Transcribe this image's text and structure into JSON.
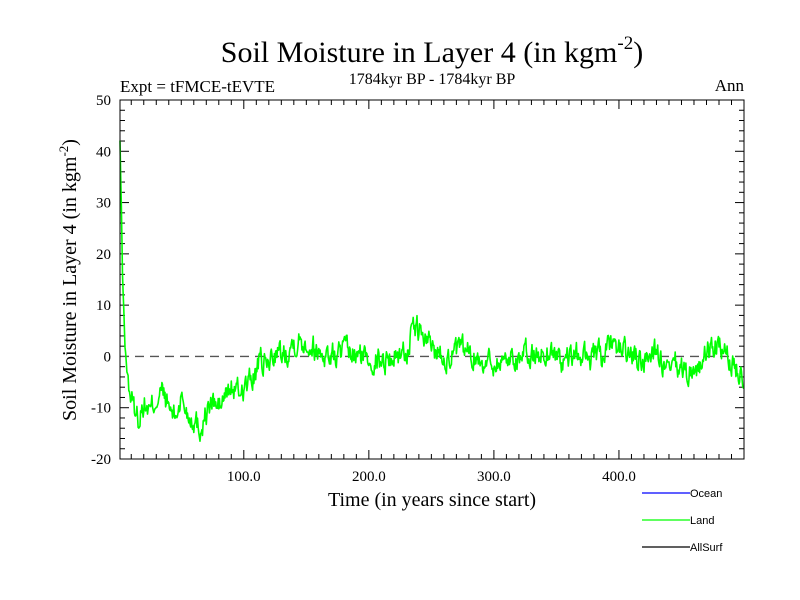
{
  "chart_data": {
    "type": "line",
    "title": "Soil Moisture in Layer 4 (in kgm",
    "title_sup": "-2",
    "title_close": ")",
    "subtitle": "1784kyr BP - 1784kyr BP",
    "expt_label": "Expt = tFMCE-tEVTE",
    "season_label": "Ann",
    "xlabel": "Time (in years since start)",
    "ylabel": "Soil Moisture in Layer 4 (in kgm",
    "ylabel_sup": "-2",
    "ylabel_close": ")",
    "xlim": [
      1,
      500
    ],
    "ylim": [
      -20,
      50
    ],
    "xticks": [
      100,
      200,
      300,
      400
    ],
    "xtick_labels": [
      "100.0",
      "200.0",
      "300.0",
      "400.0"
    ],
    "yticks": [
      -20,
      -10,
      0,
      10,
      20,
      30,
      40,
      50
    ],
    "ytick_labels": [
      "-20",
      "-10",
      "0",
      "10",
      "20",
      "30",
      "40",
      "50"
    ],
    "reference_line": 0,
    "legend": [
      {
        "name": "Ocean",
        "color": "#0000ff"
      },
      {
        "name": "Land",
        "color": "#00ff00"
      },
      {
        "name": "AllSurf",
        "color": "#000000"
      }
    ],
    "series": [
      {
        "name": "Land",
        "color": "#00ff00",
        "anchors": [
          [
            1,
            42
          ],
          [
            2,
            30
          ],
          [
            3,
            16
          ],
          [
            5,
            2
          ],
          [
            8,
            -6
          ],
          [
            12,
            -10
          ],
          [
            16,
            -12
          ],
          [
            20,
            -9
          ],
          [
            25,
            -11
          ],
          [
            30,
            -8
          ],
          [
            35,
            -7
          ],
          [
            40,
            -10
          ],
          [
            45,
            -12
          ],
          [
            50,
            -8
          ],
          [
            55,
            -11
          ],
          [
            60,
            -12
          ],
          [
            65,
            -14
          ],
          [
            70,
            -11
          ],
          [
            75,
            -9
          ],
          [
            80,
            -10
          ],
          [
            85,
            -8
          ],
          [
            90,
            -6
          ],
          [
            95,
            -7
          ],
          [
            100,
            -6
          ],
          [
            105,
            -5
          ],
          [
            110,
            -3
          ],
          [
            113,
            -1
          ],
          [
            118,
            -2
          ],
          [
            125,
            1
          ],
          [
            130,
            0
          ],
          [
            140,
            3
          ],
          [
            150,
            3
          ],
          [
            160,
            1
          ],
          [
            170,
            0
          ],
          [
            180,
            1
          ],
          [
            190,
            0
          ],
          [
            200,
            0
          ],
          [
            210,
            -1
          ],
          [
            220,
            0
          ],
          [
            230,
            1
          ],
          [
            238,
            6
          ],
          [
            245,
            3
          ],
          [
            255,
            1
          ],
          [
            265,
            0
          ],
          [
            275,
            1
          ],
          [
            285,
            0
          ],
          [
            295,
            -1
          ],
          [
            305,
            -1
          ],
          [
            315,
            0
          ],
          [
            325,
            0
          ],
          [
            335,
            0
          ],
          [
            345,
            1
          ],
          [
            355,
            -1
          ],
          [
            365,
            0
          ],
          [
            375,
            0
          ],
          [
            385,
            0
          ],
          [
            392,
            1
          ],
          [
            400,
            2
          ],
          [
            410,
            0
          ],
          [
            420,
            -1
          ],
          [
            428,
            2
          ],
          [
            435,
            -2
          ],
          [
            440,
            -4
          ],
          [
            445,
            -2
          ],
          [
            455,
            -3
          ],
          [
            465,
            -2
          ],
          [
            472,
            1
          ],
          [
            478,
            2
          ],
          [
            485,
            0
          ],
          [
            492,
            -2
          ],
          [
            500,
            -3
          ]
        ]
      }
    ]
  }
}
